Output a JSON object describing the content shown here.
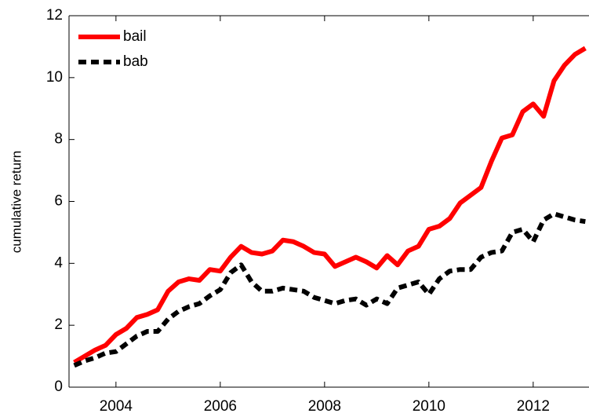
{
  "chart_data": {
    "type": "line",
    "y_label": "cumulative return",
    "x": [
      2003.2,
      2003.4,
      2003.6,
      2003.8,
      2004.0,
      2004.2,
      2004.4,
      2004.6,
      2004.8,
      2005.0,
      2005.2,
      2005.4,
      2005.6,
      2005.8,
      2006.0,
      2006.2,
      2006.4,
      2006.6,
      2006.8,
      2007.0,
      2007.2,
      2007.4,
      2007.6,
      2007.8,
      2008.0,
      2008.2,
      2008.4,
      2008.6,
      2008.8,
      2009.0,
      2009.2,
      2009.4,
      2009.6,
      2009.8,
      2010.0,
      2010.2,
      2010.4,
      2010.6,
      2010.8,
      2011.0,
      2011.2,
      2011.4,
      2011.6,
      2011.8,
      2012.0,
      2012.2,
      2012.4,
      2012.6,
      2012.8,
      2013.0
    ],
    "series": [
      {
        "name": "bail",
        "color": "#ff0000",
        "dashed": false,
        "values": [
          0.8,
          1.0,
          1.2,
          1.35,
          1.7,
          1.9,
          2.25,
          2.35,
          2.5,
          3.1,
          3.4,
          3.5,
          3.45,
          3.8,
          3.75,
          4.2,
          4.55,
          4.35,
          4.3,
          4.4,
          4.75,
          4.7,
          4.55,
          4.35,
          4.3,
          3.9,
          4.05,
          4.2,
          4.05,
          3.85,
          4.25,
          3.95,
          4.4,
          4.55,
          5.1,
          5.2,
          5.45,
          5.95,
          6.2,
          6.45,
          7.3,
          8.05,
          8.15,
          8.9,
          9.15,
          8.75,
          9.9,
          10.4,
          10.75,
          10.95
        ]
      },
      {
        "name": "bab",
        "color": "#000000",
        "dashed": true,
        "values": [
          0.7,
          0.85,
          0.95,
          1.1,
          1.15,
          1.4,
          1.65,
          1.8,
          1.8,
          2.2,
          2.45,
          2.6,
          2.7,
          2.95,
          3.15,
          3.7,
          3.95,
          3.4,
          3.1,
          3.1,
          3.2,
          3.15,
          3.1,
          2.9,
          2.8,
          2.7,
          2.8,
          2.85,
          2.65,
          2.85,
          2.7,
          3.2,
          3.3,
          3.4,
          3.0,
          3.5,
          3.75,
          3.8,
          3.8,
          4.2,
          4.35,
          4.4,
          5.0,
          5.1,
          4.7,
          5.4,
          5.6,
          5.5,
          5.4,
          5.35
        ]
      }
    ],
    "xlim": [
      2003.1,
      2013.07
    ],
    "xticks": [
      2004,
      2006,
      2008,
      2010,
      2012
    ],
    "ylim": [
      0,
      12
    ],
    "yticks": [
      0,
      2,
      4,
      6,
      8,
      10,
      12
    ],
    "legend": "upper-left",
    "grid": false
  }
}
